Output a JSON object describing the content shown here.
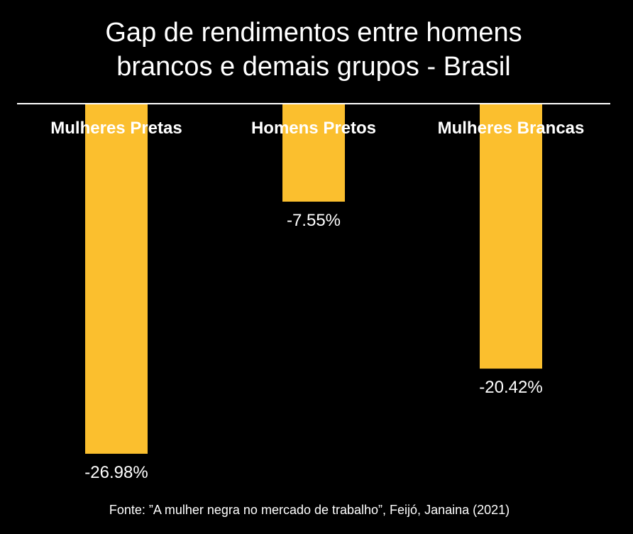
{
  "chart_data": {
    "type": "bar",
    "title_line1": "Gap de rendimentos entre homens",
    "title_line2": "brancos e demais grupos - Brasil",
    "categories": [
      "Mulheres Pretas",
      "Homens Pretos",
      "Mulheres Brancas"
    ],
    "values": [
      -26.98,
      -7.55,
      -20.42
    ],
    "value_labels": [
      "-26.98%",
      "-7.55%",
      "-20.42%"
    ],
    "ylim": [
      -27,
      0
    ],
    "grid": false,
    "legend": "none",
    "bar_color": "#FBBF2E",
    "background": "#000000",
    "text_color": "#FFFFFF"
  },
  "source": "Fonte: ”A mulher negra no mercado de trabalho”, Feijó, Janaina (2021)"
}
